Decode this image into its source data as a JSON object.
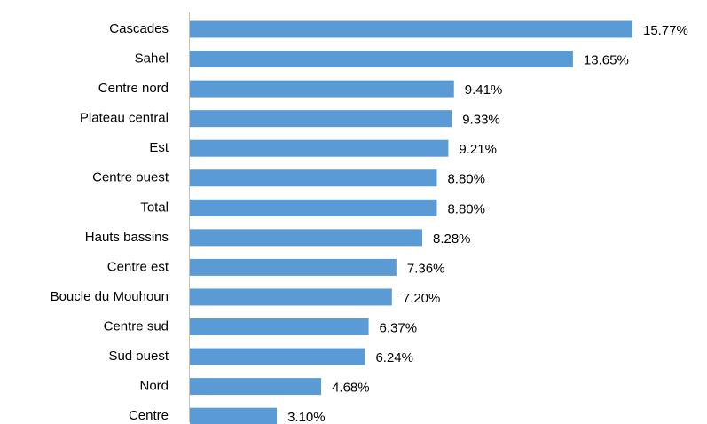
{
  "chart_data": {
    "type": "bar",
    "orientation": "horizontal",
    "categories": [
      "Cascades",
      "Sahel",
      "Centre nord",
      "Plateau central",
      "Est",
      "Centre ouest",
      "Total",
      "Hauts bassins",
      "Centre est",
      "Boucle du Mouhoun",
      "Centre sud",
      "Sud ouest",
      "Nord",
      "Centre"
    ],
    "values": [
      15.77,
      13.65,
      9.41,
      9.33,
      9.21,
      8.8,
      8.8,
      8.28,
      7.36,
      7.2,
      6.37,
      6.24,
      4.68,
      3.1
    ],
    "value_labels": [
      "15.77%",
      "13.65%",
      "9.41%",
      "9.33%",
      "9.21%",
      "8.80%",
      "8.80%",
      "8.28%",
      "7.36%",
      "7.20%",
      "6.37%",
      "6.24%",
      "4.68%",
      "3.10%"
    ],
    "color": "#5b9bd5"
  }
}
